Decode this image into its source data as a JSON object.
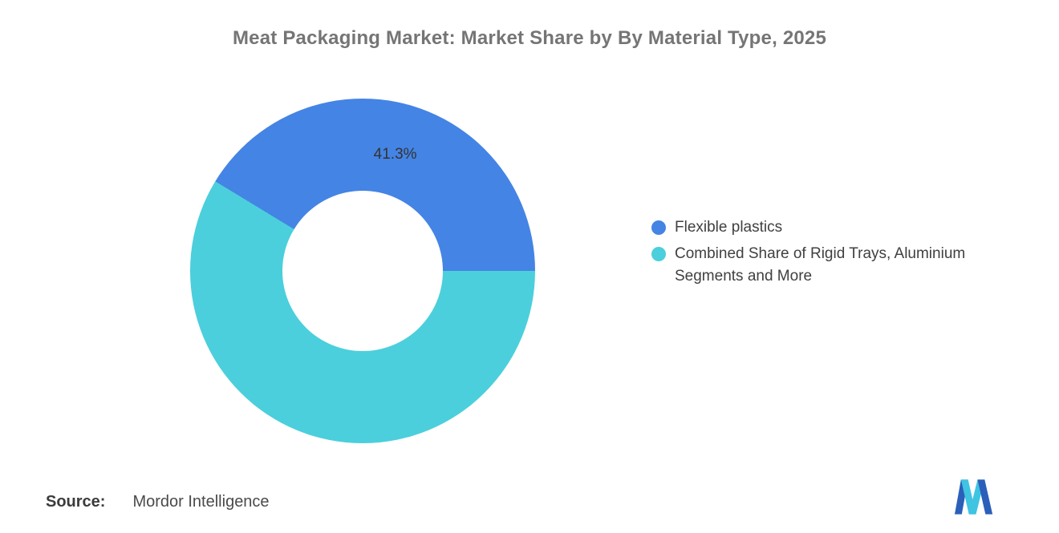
{
  "title": "Meat Packaging Market: Market Share by By Material Type, 2025",
  "chart_data": {
    "type": "pie",
    "donut": true,
    "title": "Meat Packaging Market: Market Share by By Material Type, 2025",
    "start_angle_deg": -58.68,
    "inner_radius_pct": 46,
    "legend_position": "right",
    "slices": [
      {
        "label": "Flexible plastics",
        "value": 41.3,
        "color": "#4484E4",
        "data_label": "41.3%"
      },
      {
        "label": "Combined Share of Rigid Trays, Aluminium Segments and More",
        "value": 58.7,
        "color": "#4BCFDC",
        "data_label": ""
      }
    ]
  },
  "legend": {
    "items": [
      {
        "label": "Flexible plastics",
        "color": "#4484E4"
      },
      {
        "label": "Combined Share of Rigid Trays, Aluminium Segments and More",
        "color": "#4BCFDC"
      }
    ]
  },
  "source": {
    "label": "Source:",
    "value": "Mordor Intelligence"
  },
  "brand_colors": {
    "logo_blue": "#2B5FBA",
    "logo_cyan": "#3FC4E2"
  }
}
